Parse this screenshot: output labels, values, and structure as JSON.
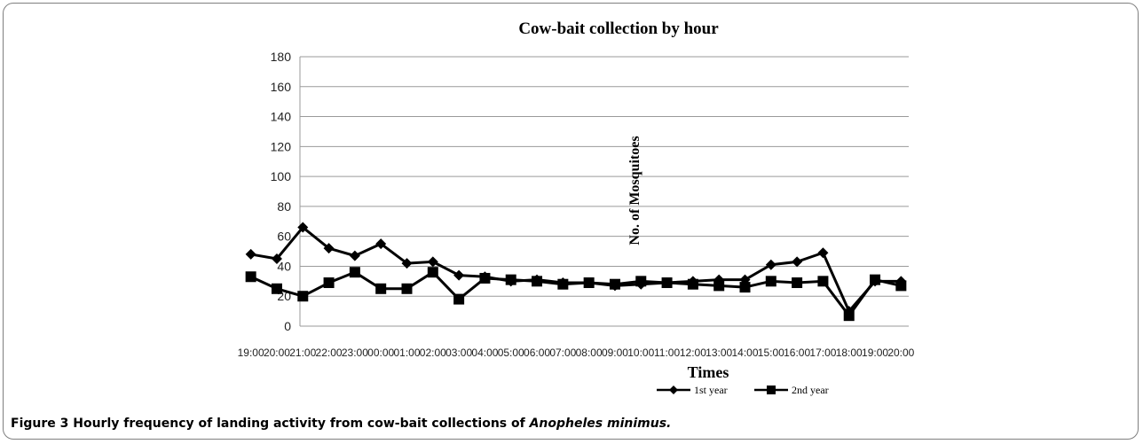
{
  "chart_data": {
    "type": "line",
    "title": "Cow-bait collection by hour",
    "xlabel": "Times",
    "ylabel": "No. of Mosquitoes",
    "ylim": [
      0,
      180
    ],
    "yticks": [
      0,
      20,
      40,
      60,
      80,
      100,
      120,
      140,
      160,
      180
    ],
    "grid": true,
    "legend_position": "bottom",
    "categories": [
      "19:00",
      "20:00",
      "21:00",
      "22:00",
      "23:00",
      "00:00",
      "01:00",
      "02:00",
      "03:00",
      "04:00",
      "05:00",
      "06:00",
      "07:00",
      "08:00",
      "09:00",
      "10:00",
      "11:00",
      "12:00",
      "13:00",
      "14:00",
      "15:00",
      "16:00",
      "17:00",
      "18:00",
      "19:00",
      "20:00"
    ],
    "series": [
      {
        "name": "1st year",
        "marker": "diamond",
        "values": [
          48,
          45,
          66,
          52,
          47,
          55,
          42,
          43,
          34,
          33,
          30,
          31,
          29,
          29,
          27,
          28,
          29,
          30,
          31,
          31,
          41,
          43,
          49,
          10,
          30,
          30
        ]
      },
      {
        "name": "2nd year",
        "marker": "square",
        "values": [
          33,
          25,
          20,
          29,
          36,
          25,
          25,
          36,
          18,
          32,
          31,
          30,
          28,
          29,
          28,
          30,
          29,
          28,
          27,
          26,
          30,
          29,
          30,
          7,
          31,
          27
        ]
      }
    ]
  },
  "caption": {
    "figure": "Figure 3",
    "text": " Hourly frequency of landing activity from cow-bait collections of ",
    "species": "Anopheles minimus."
  }
}
